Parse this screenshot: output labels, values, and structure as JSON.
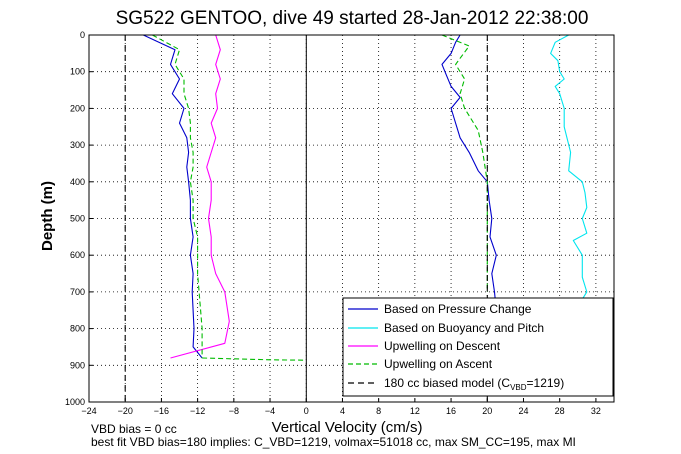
{
  "chart_data": {
    "type": "line",
    "title": "SG522 GENTOO, dive 49 started 28-Jan-2012 22:38:00",
    "xlabel": "Vertical Velocity (cm/s)",
    "ylabel": "Depth (m)",
    "xlim": [
      -24,
      34
    ],
    "ylim": [
      1000,
      0
    ],
    "y_reversed": true,
    "grid": true,
    "xticks": [
      -24,
      -20,
      -16,
      -12,
      -8,
      -4,
      0,
      4,
      8,
      12,
      16,
      20,
      24,
      28,
      32
    ],
    "yticks": [
      0,
      100,
      200,
      300,
      400,
      500,
      600,
      700,
      800,
      900,
      1000
    ],
    "legend_position": "bottom-right",
    "legend": [
      "Based on Pressure Change",
      "Based on Buoyancy and Pitch",
      "Upwelling on Descent",
      "Upwelling on Ascent",
      "180 cc biased model (C"
    ],
    "legend_sub": "VBD",
    "legend_tail": "=1219)",
    "colors": {
      "pressure": "#0000cc",
      "buoyancy": "#00e5ee",
      "descent": "#ff00ff",
      "ascent": "#00bb00",
      "model": "#000000"
    },
    "series": [
      {
        "name": "Based on Pressure Change",
        "segments": [
          {
            "x": [
              -18,
              -14.5,
              -15,
              -14,
              -14.8,
              -13.5,
              -14,
              -13.2,
              -13,
              -13.2,
              -13,
              -12.8,
              -12.8,
              -12.5,
              -12.8,
              -12.5,
              -12.6,
              -12.5,
              -12.4,
              -12.5,
              -11.5
            ],
            "y": [
              0,
              40,
              80,
              120,
              160,
              200,
              240,
              280,
              320,
              360,
              400,
              450,
              500,
              550,
              600,
              650,
              700,
              750,
              800,
              850,
              880
            ]
          },
          {
            "x": [
              17,
              16.5,
              16,
              15,
              15.5,
              16,
              17,
              16,
              16.5,
              17,
              18,
              19,
              20,
              20.2,
              20.5,
              20.3,
              21,
              20.5,
              20.8,
              21,
              20.5,
              20.5
            ],
            "y": [
              0,
              20,
              50,
              80,
              110,
              140,
              170,
              200,
              240,
              280,
              320,
              370,
              400,
              450,
              500,
              550,
              600,
              650,
              700,
              750,
              800,
              850
            ]
          }
        ]
      },
      {
        "name": "Based on Buoyancy and Pitch",
        "segments": [
          {
            "x": [
              29,
              27.5,
              27,
              27.8,
              28,
              28.5,
              27.5,
              28,
              28.5,
              28.5,
              29.2,
              29,
              30.5,
              30.8,
              31,
              30.5,
              31,
              29.5,
              30.5,
              30.5,
              31,
              30.5
            ],
            "y": [
              0,
              20,
              50,
              70,
              100,
              120,
              140,
              160,
              200,
              250,
              320,
              370,
              400,
              430,
              470,
              500,
              540,
              560,
              600,
              660,
              700,
              720
            ]
          }
        ]
      },
      {
        "name": "Upwelling on Descent",
        "segments": [
          {
            "x": [
              -10,
              -9.5,
              -10,
              -9.5,
              -10,
              -9.8,
              -10.5,
              -10,
              -10.5,
              -11,
              -10.5,
              -10.5,
              -10.8,
              -10.5,
              -10.5,
              -10,
              -9,
              -8.5,
              -9,
              -15
            ],
            "y": [
              0,
              40,
              80,
              120,
              160,
              200,
              240,
              280,
              320,
              360,
              400,
              450,
              500,
              550,
              600,
              650,
              700,
              780,
              840,
              880
            ]
          }
        ]
      },
      {
        "name": "Upwelling on Ascent",
        "segments": [
          {
            "x": [
              -17,
              -14,
              -14.5,
              -13.5,
              -13.5,
              -13,
              -12.8,
              -12.8,
              -12.5,
              -12.5,
              -12.8,
              -12.5,
              -12.5,
              -12,
              -12,
              -11.5,
              -11.5
            ],
            "y": [
              0,
              40,
              80,
              120,
              160,
              200,
              240,
              280,
              320,
              360,
              400,
              450,
              500,
              550,
              650,
              800,
              880
            ]
          },
          {
            "x": [
              15,
              18,
              16.5,
              17.5,
              17,
              17.5,
              19,
              19.5,
              20,
              20,
              20,
              20
            ],
            "y": [
              0,
              30,
              80,
              120,
              160,
              200,
              260,
              320,
              400,
              500,
              600,
              700
            ]
          },
          {
            "x": [
              -11.5,
              -4,
              0
            ],
            "y": [
              880,
              885,
              886
            ]
          }
        ]
      },
      {
        "name": "180 cc biased model (CVBD=1219)",
        "segments": [
          {
            "x": [
              -20,
              -20
            ],
            "y": [
              0,
              1000
            ]
          },
          {
            "x": [
              20,
              20
            ],
            "y": [
              0,
              1000
            ]
          }
        ]
      }
    ],
    "annotations": [
      "VBD bias = 0 cc",
      "best fit VBD bias=180 implies: C_VBD=1219, volmax=51018 cc, max SM_CC=195, max MI"
    ]
  }
}
